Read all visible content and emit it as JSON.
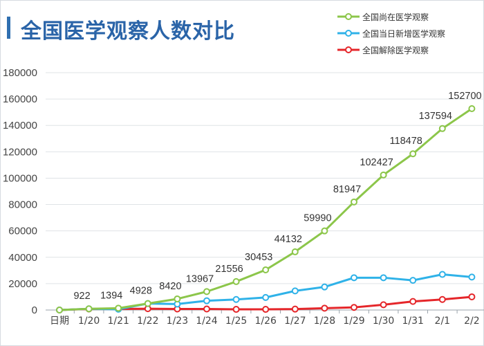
{
  "chart_data": {
    "type": "line",
    "title": "全国医学观察人数对比",
    "categories": [
      "日期",
      "1/20",
      "1/21",
      "1/22",
      "1/23",
      "1/24",
      "1/25",
      "1/26",
      "1/27",
      "1/28",
      "1/29",
      "1/30",
      "1/31",
      "2/1",
      "2/2"
    ],
    "ylim": [
      0,
      180000
    ],
    "yticks": [
      "0",
      "20000",
      "40000",
      "60000",
      "80000",
      "100000",
      "120000",
      "140000",
      "160000",
      "180000"
    ],
    "grid": true,
    "legend_position": "top-right",
    "series": [
      {
        "name": "全国尚在医学观察",
        "color": "#8cc64a",
        "values": [
          0,
          922,
          1394,
          4928,
          8420,
          13967,
          21556,
          30453,
          44132,
          59990,
          81947,
          102427,
          118478,
          137594,
          152700
        ],
        "labels": [
          "",
          "922",
          "1394",
          "4928",
          "8420",
          "13967",
          "21556",
          "30453",
          "44132",
          "59990",
          "81947",
          "102427",
          "118478",
          "137594",
          "152700"
        ]
      },
      {
        "name": "全国当日新增医学观察",
        "color": "#2fb2e8",
        "values": [
          0,
          922,
          600,
          4900,
          4500,
          7000,
          8000,
          9500,
          14500,
          17500,
          24500,
          24500,
          22500,
          27000,
          25000
        ]
      },
      {
        "name": "全国解除医学观察",
        "color": "#e5262a",
        "values": [
          0,
          800,
          800,
          1000,
          800,
          800,
          500,
          500,
          700,
          1400,
          2000,
          4000,
          6500,
          8000,
          10000
        ]
      }
    ]
  }
}
